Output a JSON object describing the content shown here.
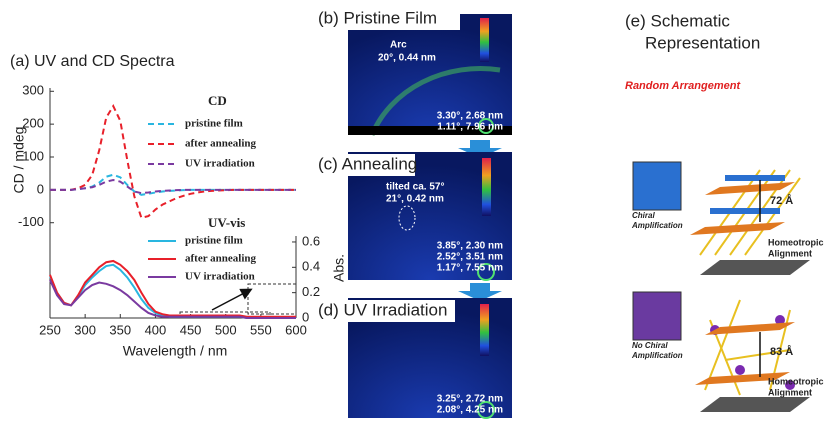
{
  "chart_data": {
    "type": "line",
    "title": "(a) UV and CD Spectra",
    "x_label": "Wavelength / nm",
    "y_label": "CD / mdeg",
    "y2_label": "Abs.",
    "cd_legend_title": "CD",
    "uv_legend_title": "UV-vis",
    "x": [
      250,
      260,
      270,
      280,
      290,
      300,
      310,
      320,
      330,
      340,
      350,
      360,
      370,
      380,
      390,
      400,
      410,
      420,
      430,
      440,
      450,
      460,
      470,
      480,
      490,
      500,
      510,
      520,
      530,
      540,
      550,
      560,
      570,
      580,
      590,
      600
    ],
    "series": [
      {
        "name": "pristine film",
        "color": "#29b6e0",
        "style": "dashed",
        "axis": "y",
        "values": [
          0,
          0,
          0,
          0,
          2,
          5,
          10,
          22,
          40,
          46,
          38,
          15,
          -5,
          -15,
          -12,
          -8,
          -5,
          -3,
          -2,
          -1,
          0,
          0,
          0,
          0,
          0,
          0,
          0,
          0,
          0,
          0,
          0,
          0,
          0,
          0,
          0,
          0
        ]
      },
      {
        "name": "after annealing",
        "color": "#e8202a",
        "style": "dashed",
        "axis": "y",
        "values": [
          0,
          0,
          0,
          0,
          5,
          15,
          45,
          120,
          220,
          255,
          210,
          90,
          -20,
          -85,
          -80,
          -60,
          -45,
          -35,
          -25,
          -18,
          -12,
          -8,
          -5,
          -3,
          -2,
          -1,
          0,
          0,
          0,
          0,
          0,
          0,
          0,
          0,
          0,
          0
        ]
      },
      {
        "name": "UV irradiation",
        "color": "#7a3aa0",
        "style": "dashed",
        "axis": "y",
        "values": [
          0,
          0,
          0,
          0,
          2,
          5,
          8,
          15,
          25,
          30,
          25,
          10,
          -5,
          -10,
          -8,
          -5,
          -3,
          -2,
          -1,
          0,
          0,
          0,
          0,
          0,
          0,
          0,
          0,
          0,
          0,
          0,
          0,
          0,
          0,
          0,
          0,
          0
        ]
      },
      {
        "name": "pristine film",
        "color": "#29b6e0",
        "style": "solid",
        "axis": "y2",
        "values": [
          0.33,
          0.2,
          0.12,
          0.1,
          0.17,
          0.26,
          0.32,
          0.37,
          0.41,
          0.42,
          0.38,
          0.32,
          0.24,
          0.15,
          0.08,
          0.04,
          0.02,
          0.01,
          0.01,
          0.01,
          0.01,
          0.01,
          0.01,
          0.01,
          0.01,
          0.01,
          0.01,
          0.01,
          0,
          0,
          0,
          0,
          0,
          0,
          0,
          0
        ]
      },
      {
        "name": "after annealing",
        "color": "#e8202a",
        "style": "solid",
        "axis": "y2",
        "values": [
          0.34,
          0.2,
          0.12,
          0.1,
          0.18,
          0.28,
          0.34,
          0.4,
          0.44,
          0.45,
          0.42,
          0.37,
          0.3,
          0.2,
          0.11,
          0.05,
          0.03,
          0.02,
          0.02,
          0.02,
          0.02,
          0.02,
          0.02,
          0.02,
          0.02,
          0.02,
          0.02,
          0.02,
          0.01,
          0.01,
          0.01,
          0.01,
          0.01,
          0.01,
          0.01,
          0.01
        ]
      },
      {
        "name": "UV irradiation",
        "color": "#7a3aa0",
        "style": "solid",
        "axis": "y2",
        "values": [
          0.3,
          0.18,
          0.11,
          0.1,
          0.16,
          0.22,
          0.26,
          0.28,
          0.27,
          0.25,
          0.22,
          0.18,
          0.13,
          0.08,
          0.04,
          0.02,
          0.01,
          0.01,
          0.01,
          0.01,
          0.01,
          0.01,
          0.01,
          0.01,
          0.01,
          0.01,
          0.01,
          0.01,
          0,
          0,
          0,
          0,
          0,
          0,
          0,
          0
        ]
      }
    ],
    "xlim": [
      250,
      600
    ],
    "xticks": [
      250,
      300,
      350,
      400,
      450,
      500,
      550,
      600
    ],
    "ylim": [
      -390,
      310
    ],
    "yticks": [
      -100,
      0,
      100,
      200,
      300
    ],
    "y2lim": [
      0,
      1.815
    ],
    "y2ticks": [
      0,
      0.2,
      0.4,
      0.6
    ],
    "grid": false
  },
  "panels": {
    "b": {
      "title": "(b) Pristine Film",
      "arc": "Arc",
      "arc_value": "20°, 0.44 nm",
      "peaks": [
        "3.30°, 2.68 nm",
        "1.11°, 7.96 nm"
      ]
    },
    "c": {
      "title": "(c) Annealing",
      "tilt": "tilted ca. 57°",
      "spot_value": "21°, 0.42 nm",
      "peaks": [
        "3.85°, 2.30 nm",
        "2.52°, 3.51 nm",
        "1.17°, 7.55 nm"
      ]
    },
    "d": {
      "title": "(d) UV Irradiation",
      "peaks": [
        "3.25°, 2.72 nm",
        "2.08°, 4.25 nm"
      ]
    },
    "e": {
      "title": [
        "(e) Schematic",
        "Representation"
      ],
      "random": "Random Arrangement",
      "upper": {
        "label": [
          "Chiral",
          "Amplification"
        ],
        "spacing": "72 Å",
        "alignment": [
          "Homeotropic",
          "Alignment"
        ]
      },
      "lower": {
        "label": [
          "No Chiral",
          "Amplification"
        ],
        "spacing": "83 Å",
        "alignment": [
          "Homeotropic",
          "Alignment"
        ]
      }
    }
  }
}
